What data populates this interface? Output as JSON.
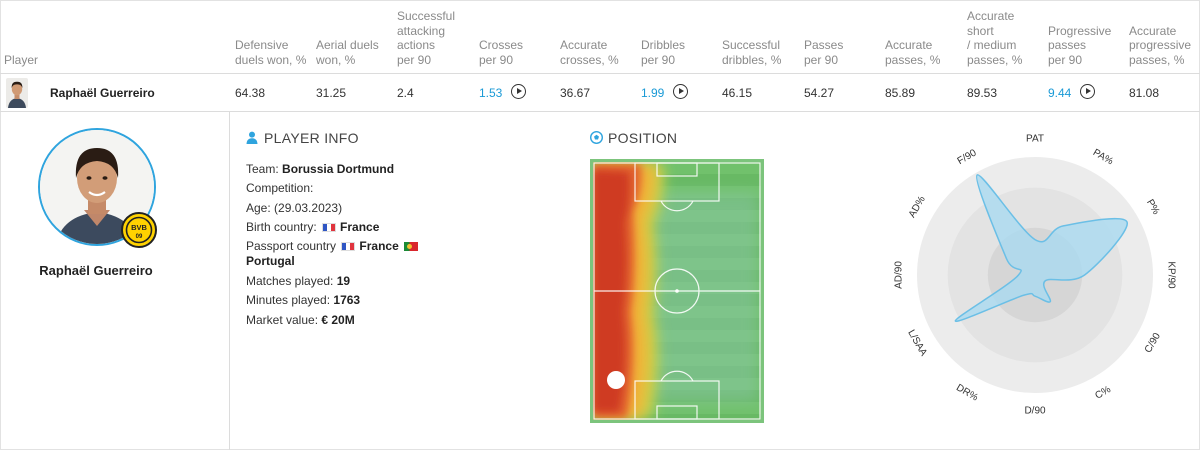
{
  "table": {
    "headers": {
      "player": "Player",
      "stats": [
        [
          "Defensive",
          "duels won, %"
        ],
        [
          "Aerial duels",
          "won, %"
        ],
        [
          "Successful",
          "attacking",
          "actions",
          "per 90"
        ],
        [
          "Crosses",
          "per 90"
        ],
        [
          "Accurate",
          "crosses, %"
        ],
        [
          "Dribbles",
          "per 90"
        ],
        [
          "Successful",
          "dribbles, %"
        ],
        [
          "Passes",
          "per 90"
        ],
        [
          "Accurate",
          "passes, %"
        ],
        [
          "Accurate",
          "short",
          "/ medium",
          "passes, %"
        ],
        [
          "Progressive",
          "passes",
          "per 90"
        ],
        [
          "Accurate",
          "progressive",
          "passes, %"
        ]
      ]
    },
    "row": {
      "name": "Raphaël Guerreiro",
      "values": [
        "64.38",
        "31.25",
        "2.4",
        "1.53",
        "36.67",
        "1.99",
        "46.15",
        "54.27",
        "85.89",
        "89.53",
        "9.44",
        "81.08"
      ],
      "linked": [
        false,
        false,
        false,
        true,
        false,
        true,
        false,
        false,
        false,
        false,
        true,
        false
      ],
      "video": [
        false,
        false,
        false,
        true,
        false,
        true,
        false,
        false,
        false,
        false,
        true,
        false
      ]
    }
  },
  "profile": {
    "name": "Raphaël Guerreiro",
    "badge_text": "BVB",
    "badge_number": "09"
  },
  "info": {
    "title": "PLAYER INFO",
    "team_label": "Team:",
    "team": "Borussia Dortmund",
    "competition_label": "Competition:",
    "competition": "",
    "age_label": "Age:",
    "age": "(29.03.2023)",
    "birth_label": "Birth country:",
    "birth": "France",
    "passport_label": "Passport country",
    "passport_1": "France",
    "passport_2": "Portugal",
    "matches_label": "Matches played:",
    "matches": "19",
    "minutes_label": "Minutes played:",
    "minutes": "1763",
    "market_label": "Market value:",
    "market": "€ 20M"
  },
  "position": {
    "title": "POSITION"
  },
  "radar": {
    "labels": [
      "PAT",
      "PA%",
      "P%",
      "KP/90",
      "C/90",
      "C%",
      "D/90",
      "DR%",
      "L/SAA",
      "AD/90",
      "AD%",
      "F/90"
    ],
    "values": [
      0.3,
      0.48,
      0.9,
      0.42,
      0.1,
      0.26,
      0.18,
      0.2,
      0.78,
      0.14,
      0.28,
      0.98
    ]
  },
  "colors": {
    "accent": "#1a9ad6",
    "radar_fill": "#a9d9f0",
    "radar_stroke": "#6bbfe6",
    "pitch_green": "#6fbf6a",
    "badge_yellow": "#ffd200"
  }
}
